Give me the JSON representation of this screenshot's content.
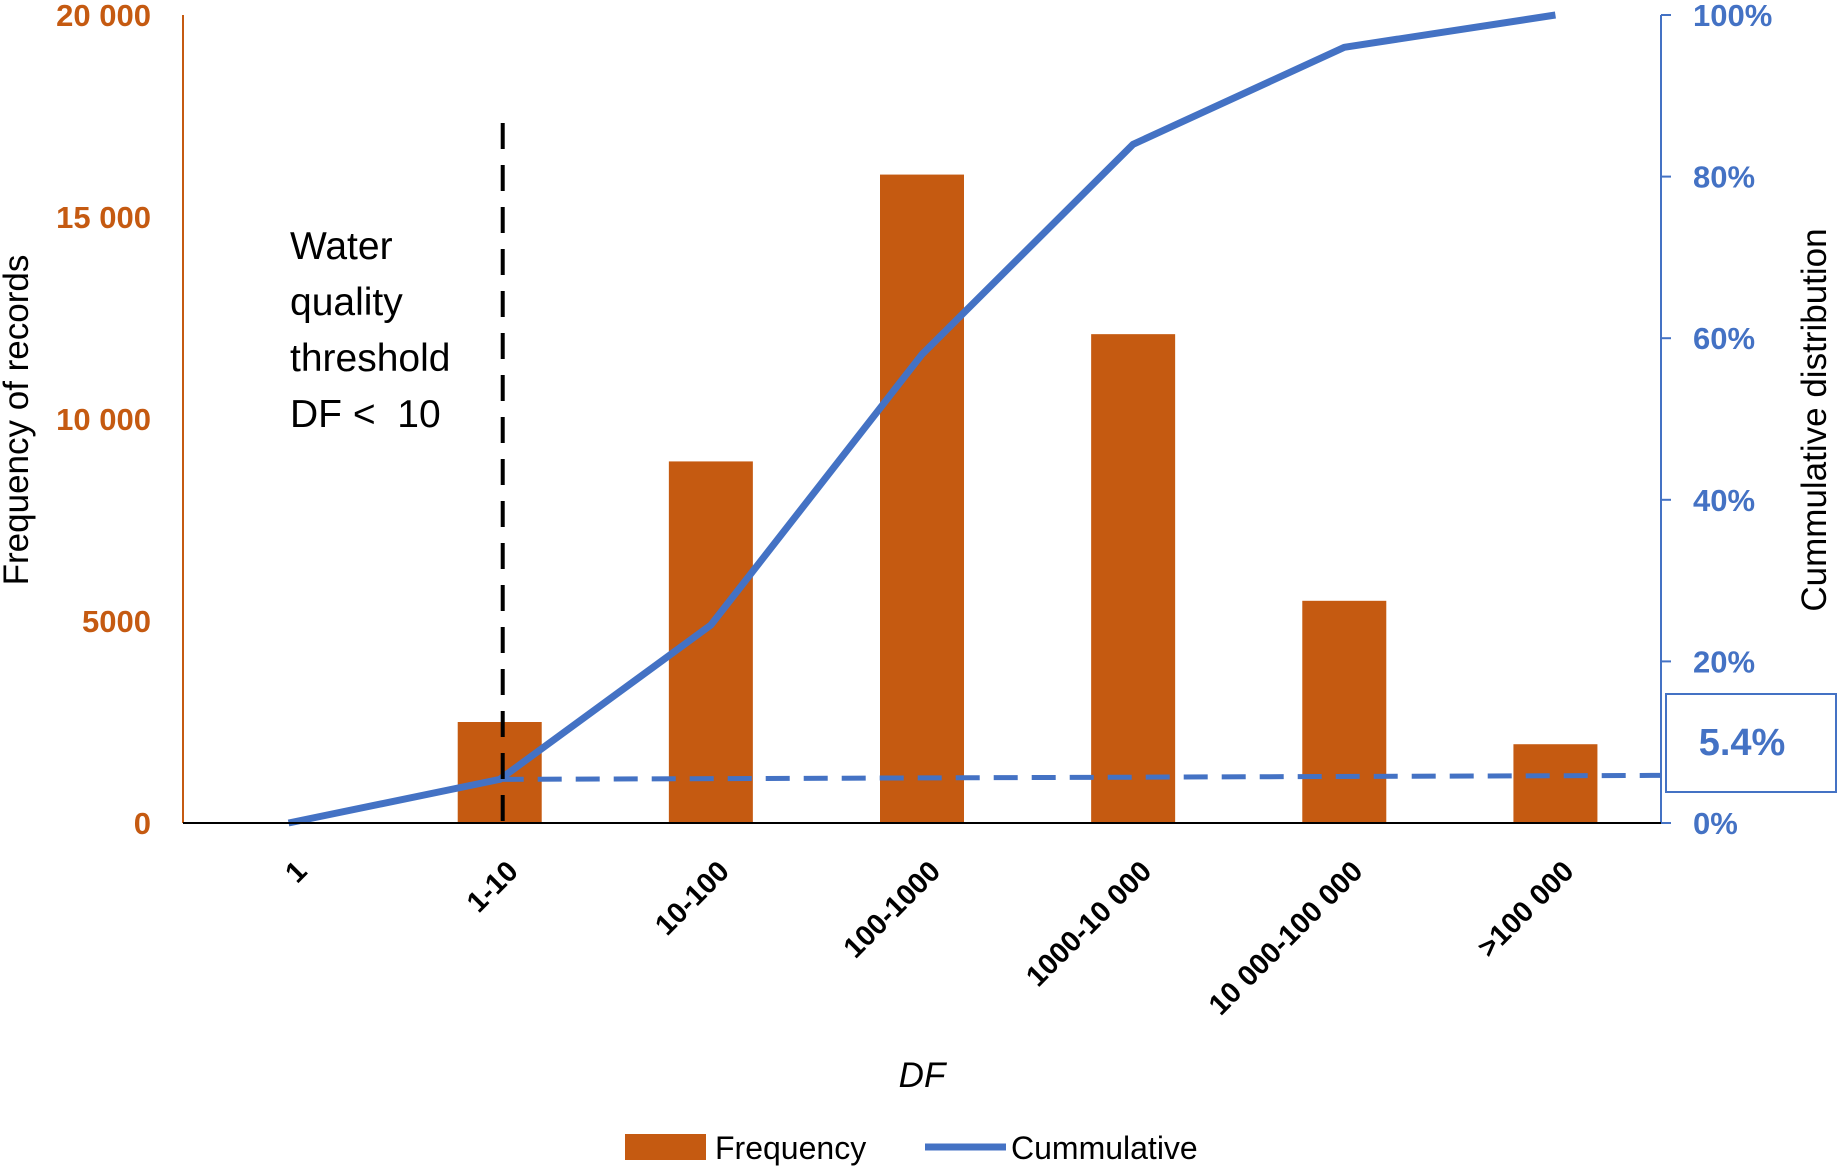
{
  "chart_data": {
    "type": "bar",
    "categories": [
      "1",
      "1-10",
      "10-100",
      "100-1000",
      "1000-10 000",
      "10 000-100 000",
      ">100 000"
    ],
    "series": [
      {
        "name": "Frequency",
        "type": "bar",
        "axis": "left",
        "values": [
          0,
          2500,
          8950,
          16050,
          12100,
          5500,
          1950
        ]
      },
      {
        "name": "Cummulative",
        "type": "line",
        "axis": "right",
        "values": [
          0,
          5.4,
          24.5,
          58,
          84,
          96,
          100
        ]
      }
    ],
    "xlabel": "DF",
    "ylabel": "Frequency of records",
    "y2label": "Cummulative distribution",
    "ylim": [
      0,
      20000
    ],
    "y2lim": [
      0,
      100
    ],
    "yticks": [
      "0",
      "5000",
      "10 000",
      "15 000",
      "20 000"
    ],
    "y2ticks": [
      "0%",
      "20%",
      "40%",
      "60%",
      "80%",
      "100%"
    ],
    "threshold": {
      "category": "1-10",
      "lines": [
        "Water",
        "quality",
        "threshold",
        "DF <  10"
      ]
    },
    "reference_line": {
      "value": 5.4,
      "label": "5.4%"
    },
    "legend": {
      "position": "bottom"
    },
    "colors": {
      "bar": "#C55A11",
      "line": "#4472C4",
      "threshold": "#000000"
    }
  }
}
